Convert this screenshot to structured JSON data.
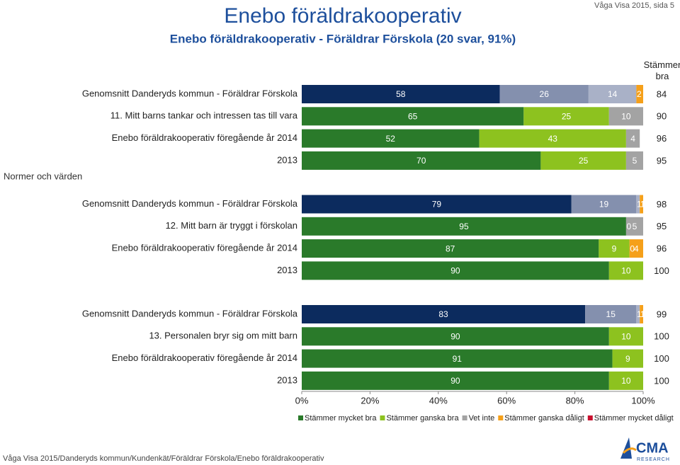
{
  "chart_data": {
    "type": "bar",
    "stacked": true,
    "title": "Enebo föräldrakooperativ",
    "subtitle": "Enebo föräldrakooperativ - Föräldrar Förskola (20 svar, 91%)",
    "page_label": "Våga Visa 2015, sida 5",
    "column_header": "Stämmer bra",
    "section": "Normer och värden",
    "footer": "Våga Visa 2015/Danderyds kommun/Kundenkät/Föräldrar Förskola/Enebo föräldrakooperativ",
    "logo": {
      "text": "CMA",
      "subtext": "RESEARCH"
    },
    "xlim": [
      0,
      100
    ],
    "xticks": [
      {
        "value": 0,
        "label": "0%"
      },
      {
        "value": 20,
        "label": "20%"
      },
      {
        "value": 40,
        "label": "40%"
      },
      {
        "value": 60,
        "label": "60%"
      },
      {
        "value": 80,
        "label": "80%"
      },
      {
        "value": 100,
        "label": "100%"
      }
    ],
    "series": [
      {
        "name": "Stämmer mycket bra",
        "color": "#2a7a2a"
      },
      {
        "name": "Stämmer ganska bra",
        "color": "#8dc21f"
      },
      {
        "name": "Vet inte",
        "color": "#a3a3a3"
      },
      {
        "name": "Stämmer ganska dåligt",
        "color": "#f5a01a"
      },
      {
        "name": "Stämmer mycket dåligt",
        "color": "#c8102e"
      }
    ],
    "groups": [
      {
        "rows": [
          {
            "label": "Genomsnitt Danderyds kommun - Föräldrar Förskola",
            "values": [
              58,
              26,
              14,
              2,
              0
            ],
            "total": 84,
            "colors": [
              "#0c2b5e",
              "#8490ae",
              "#a9b1c7",
              "#f5a01a",
              "#c8102e"
            ]
          },
          {
            "label": "11. Mitt barns tankar och intressen tas till vara",
            "values": [
              65,
              25,
              10,
              0,
              0
            ],
            "total": 90
          },
          {
            "label": "Enebo föräldrakooperativ föregående år 2014",
            "values": [
              52,
              43,
              4,
              0,
              0
            ],
            "total": 96
          },
          {
            "label": "2013",
            "values": [
              70,
              25,
              5,
              0,
              0
            ],
            "total": 95
          }
        ]
      },
      {
        "rows": [
          {
            "label": "Genomsnitt Danderyds kommun - Föräldrar Förskola",
            "values": [
              79,
              19,
              1,
              1,
              0
            ],
            "total": 98,
            "colors": [
              "#0c2b5e",
              "#8490ae",
              "#a9b1c7",
              "#f5a01a",
              "#c8102e"
            ]
          },
          {
            "label": "12. Mitt barn är tryggt i förskolan",
            "values": [
              95,
              0,
              5,
              0,
              0
            ],
            "total": 95
          },
          {
            "label": "Enebo föräldrakooperativ föregående år 2014",
            "values": [
              87,
              9,
              0,
              4,
              0
            ],
            "total": 96
          },
          {
            "label": "2013",
            "values": [
              90,
              10,
              0,
              0,
              0
            ],
            "total": 100
          }
        ]
      },
      {
        "rows": [
          {
            "label": "Genomsnitt Danderyds kommun - Föräldrar Förskola",
            "values": [
              83,
              15,
              1,
              1,
              0
            ],
            "total": 99,
            "colors": [
              "#0c2b5e",
              "#8490ae",
              "#a9b1c7",
              "#f5a01a",
              "#c8102e"
            ]
          },
          {
            "label": "13. Personalen bryr sig om mitt barn",
            "values": [
              90,
              10,
              0,
              0,
              0
            ],
            "total": 100
          },
          {
            "label": "Enebo föräldrakooperativ föregående år 2014",
            "values": [
              91,
              9,
              0,
              0,
              0
            ],
            "total": 100
          },
          {
            "label": "2013",
            "values": [
              90,
              10,
              0,
              0,
              0
            ],
            "total": 100
          }
        ]
      }
    ]
  }
}
